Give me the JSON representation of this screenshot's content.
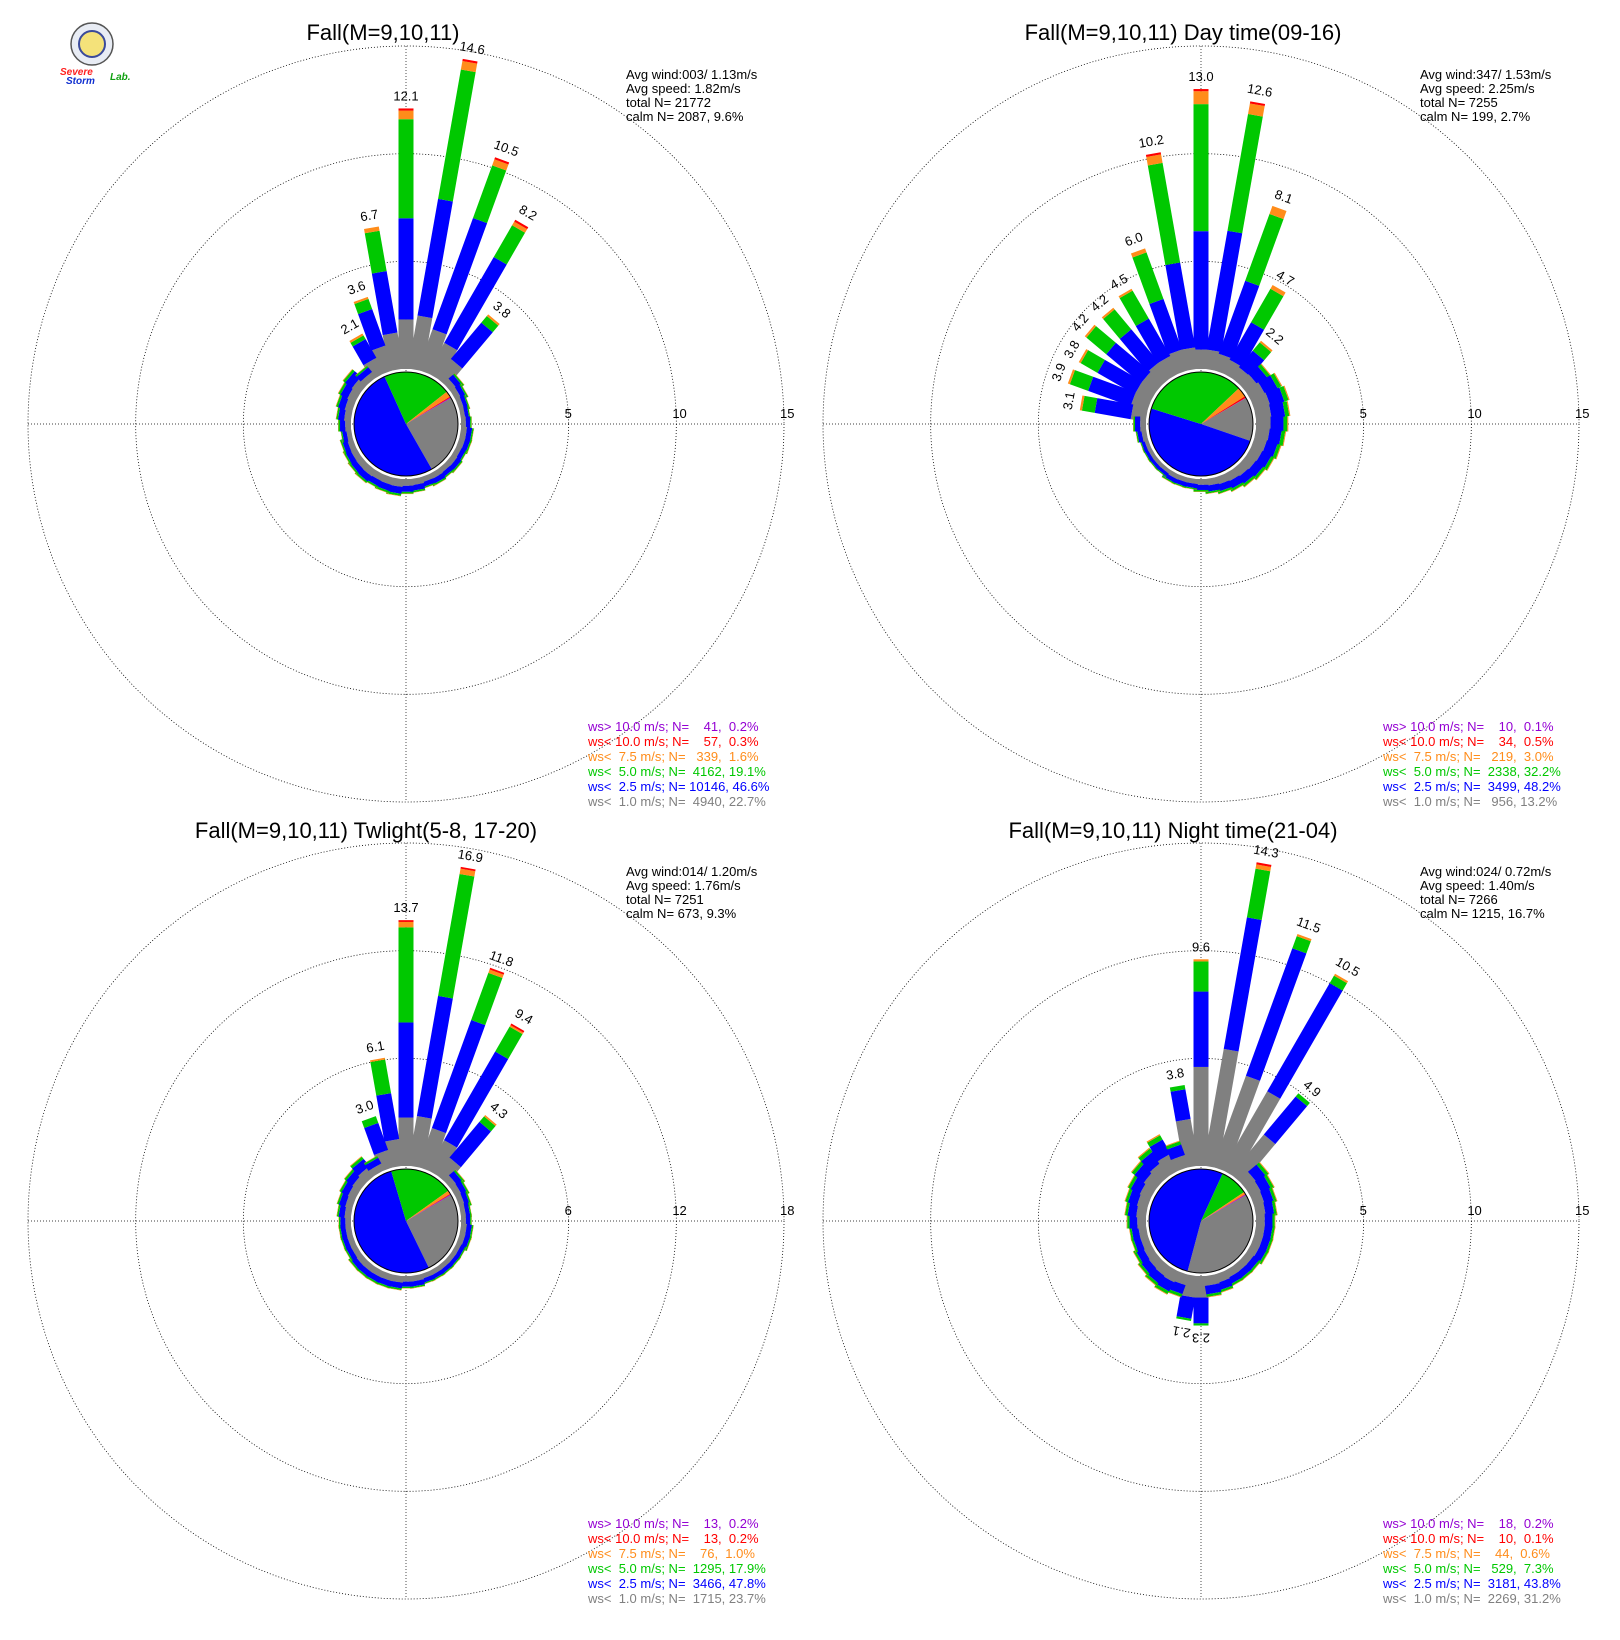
{
  "logo": {
    "line1": "Severe",
    "line2": "Storm",
    "line3": "Lab."
  },
  "colors": {
    "calm": "#808080",
    "lt1": "#808080",
    "lt2_5": "#0000ff",
    "lt5": "#00c800",
    "lt7_5": "#ff8c1a",
    "lt10": "#ff0000",
    "gt10": "#9400d3"
  },
  "chart_data": [
    {
      "type": "windrose",
      "title": "Fall(M=9,10,11)",
      "stats": [
        "Avg wind:003/ 1.13m/s",
        "Avg speed: 1.82m/s",
        "total N=      21772",
        "calm N=   2087,   9.6%"
      ],
      "ring_labels": [
        "5",
        "10",
        "15"
      ],
      "rmax": 15,
      "calm_pct": 9.6,
      "calm_pie": [
        {
          "class": "lt1",
          "pct": 22.7
        },
        {
          "class": "lt2_5",
          "pct": 46.6
        },
        {
          "class": "lt5",
          "pct": 19.1
        },
        {
          "class": "lt7_5",
          "pct": 1.6
        },
        {
          "class": "lt10",
          "pct": 0.3
        },
        {
          "class": "gt10",
          "pct": 0.2
        }
      ],
      "directions": [
        {
          "deg": 10,
          "total": 14.6,
          "split": [
            2.5,
            5.5,
            6.1,
            0.4,
            0.1,
            0.0
          ],
          "label": "14.6"
        },
        {
          "deg": 20,
          "total": 10.5,
          "split": [
            2.0,
            5.5,
            2.6,
            0.3,
            0.1,
            0.0
          ],
          "label": "10.5"
        },
        {
          "deg": 30,
          "total": 8.2,
          "split": [
            1.6,
            4.6,
            1.7,
            0.2,
            0.1,
            0.0
          ],
          "label": "8.2"
        },
        {
          "deg": 40,
          "total": 3.8,
          "split": [
            1.1,
            2.2,
            0.4,
            0.1,
            0.0,
            0.0
          ],
          "label": "3.8"
        },
        {
          "deg": 0,
          "total": 12.1,
          "split": [
            2.3,
            4.7,
            4.6,
            0.4,
            0.1,
            0.0
          ],
          "label": "12.1"
        },
        {
          "deg": 350,
          "total": 6.7,
          "split": [
            1.7,
            2.9,
            1.9,
            0.2,
            0.0,
            0.0
          ],
          "label": "6.7"
        },
        {
          "deg": 340,
          "total": 3.6,
          "split": [
            1.2,
            1.8,
            0.5,
            0.1,
            0.0,
            0.0
          ],
          "label": "3.6"
        },
        {
          "deg": 330,
          "total": 2.1,
          "split": [
            0.8,
            1.0,
            0.2,
            0.1,
            0.0,
            0.0
          ],
          "label": "2.1"
        }
      ],
      "small": [
        0.7,
        0.6,
        0.5,
        0.45,
        0.5,
        0.6,
        0.6,
        0.55,
        0.6,
        0.55,
        0.6,
        0.55,
        0.65,
        0.7,
        0.8,
        0.75,
        0.7,
        0.75,
        0.7,
        0.65,
        0.6,
        0.5,
        0.6,
        0.7,
        0.8,
        0.9,
        1.0
      ],
      "legend": [
        {
          "class": "gt10",
          "text": "ws> 10.0 m/s; N=    41,  0.2%"
        },
        {
          "class": "lt10",
          "text": "ws< 10.0 m/s; N=    57,  0.3%"
        },
        {
          "class": "lt7_5",
          "text": "ws<  7.5 m/s; N=   339,  1.6%"
        },
        {
          "class": "lt5",
          "text": "ws<  5.0 m/s; N=  4162, 19.1%"
        },
        {
          "class": "lt2_5",
          "text": "ws<  2.5 m/s; N= 10146, 46.6%"
        },
        {
          "class": "lt1",
          "text": "ws<  1.0 m/s; N=  4940, 22.7%"
        }
      ]
    },
    {
      "type": "windrose",
      "title": "Fall(M=9,10,11) Day time(09-16)",
      "stats": [
        "Avg wind:347/ 1.53m/s",
        "Avg speed: 2.25m/s",
        "total N=       7255",
        "calm N=    199,   2.7%"
      ],
      "ring_labels": [
        "5",
        "10",
        "15"
      ],
      "rmax": 15,
      "calm_pct": 2.7,
      "calm_pie": [
        {
          "class": "lt1",
          "pct": 13.2
        },
        {
          "class": "lt2_5",
          "pct": 48.2
        },
        {
          "class": "lt5",
          "pct": 32.2
        },
        {
          "class": "lt7_5",
          "pct": 3.0
        },
        {
          "class": "lt10",
          "pct": 0.5
        },
        {
          "class": "gt10",
          "pct": 0.1
        }
      ],
      "directions": [
        {
          "deg": 0,
          "total": 13.0,
          "split": [
            0.9,
            5.5,
            5.9,
            0.6,
            0.1,
            0.0
          ],
          "label": "13.0"
        },
        {
          "deg": 10,
          "total": 12.6,
          "split": [
            0.9,
            5.6,
            5.5,
            0.5,
            0.1,
            0.0
          ],
          "label": "12.6"
        },
        {
          "deg": 20,
          "total": 8.1,
          "split": [
            0.8,
            3.6,
            3.3,
            0.4,
            0.0,
            0.0
          ],
          "label": "8.1"
        },
        {
          "deg": 30,
          "total": 4.7,
          "split": [
            0.7,
            2.0,
            1.8,
            0.2,
            0.0,
            0.0
          ],
          "label": "4.7"
        },
        {
          "deg": 40,
          "total": 2.2,
          "split": [
            0.6,
            1.0,
            0.5,
            0.1,
            0.0,
            0.0
          ],
          "label": "2.2"
        },
        {
          "deg": 350,
          "total": 10.2,
          "split": [
            1.0,
            4.0,
            4.7,
            0.4,
            0.1,
            0.0
          ],
          "label": "10.2"
        },
        {
          "deg": 340,
          "total": 6.0,
          "split": [
            1.0,
            2.5,
            2.3,
            0.2,
            0.0,
            0.0
          ],
          "label": "6.0"
        },
        {
          "deg": 330,
          "total": 4.5,
          "split": [
            0.9,
            2.0,
            1.5,
            0.1,
            0.0,
            0.0
          ],
          "label": "4.5"
        },
        {
          "deg": 320,
          "total": 4.2,
          "split": [
            0.9,
            2.0,
            1.2,
            0.1,
            0.0,
            0.0
          ],
          "label": "4.2"
        },
        {
          "deg": 310,
          "total": 4.2,
          "split": [
            0.8,
            2.1,
            1.2,
            0.1,
            0.0,
            0.0
          ],
          "label": "4.2"
        },
        {
          "deg": 300,
          "total": 3.8,
          "split": [
            0.8,
            2.0,
            0.9,
            0.1,
            0.0,
            0.0
          ],
          "label": "3.8"
        },
        {
          "deg": 290,
          "total": 3.9,
          "split": [
            0.8,
            2.1,
            0.9,
            0.1,
            0.0,
            0.0
          ],
          "label": "3.9"
        },
        {
          "deg": 280,
          "total": 3.1,
          "split": [
            0.7,
            1.7,
            0.6,
            0.1,
            0.0,
            0.0
          ],
          "label": "3.1"
        }
      ],
      "small": [
        1.4,
        1.6,
        1.7,
        1.6,
        1.5,
        1.4,
        1.3,
        1.2,
        1.1,
        1.0,
        0.9,
        0.8,
        0.7,
        0.6,
        0.5,
        0.5,
        0.5,
        0.4,
        0.4,
        0.4,
        0.4,
        0.5,
        0.6,
        0.7,
        0.9,
        1.1,
        1.3
      ],
      "legend": [
        {
          "class": "gt10",
          "text": "ws> 10.0 m/s; N=    10,  0.1%"
        },
        {
          "class": "lt10",
          "text": "ws< 10.0 m/s; N=    34,  0.5%"
        },
        {
          "class": "lt7_5",
          "text": "ws<  7.5 m/s; N=   219,  3.0%"
        },
        {
          "class": "lt5",
          "text": "ws<  5.0 m/s; N=  2338, 32.2%"
        },
        {
          "class": "lt2_5",
          "text": "ws<  2.5 m/s; N=  3499, 48.2%"
        },
        {
          "class": "lt1",
          "text": "ws<  1.0 m/s; N=   956, 13.2%"
        }
      ]
    },
    {
      "type": "windrose",
      "title": "Fall(M=9,10,11) Twlight(5-8, 17-20)",
      "stats": [
        "Avg wind:014/ 1.20m/s",
        "Avg speed: 1.76m/s",
        "total N=       7251",
        "calm N=    673,   9.3%"
      ],
      "ring_labels": [
        "6",
        "12",
        "18"
      ],
      "rmax": 18,
      "calm_pct": 9.3,
      "calm_pie": [
        {
          "class": "lt1",
          "pct": 23.7
        },
        {
          "class": "lt2_5",
          "pct": 47.8
        },
        {
          "class": "lt5",
          "pct": 17.9
        },
        {
          "class": "lt7_5",
          "pct": 1.0
        },
        {
          "class": "lt10",
          "pct": 0.2
        },
        {
          "class": "gt10",
          "pct": 0.2
        }
      ],
      "directions": [
        {
          "deg": 10,
          "total": 16.9,
          "split": [
            2.8,
            6.8,
            6.9,
            0.3,
            0.1,
            0.0
          ],
          "label": "16.9"
        },
        {
          "deg": 0,
          "total": 13.7,
          "split": [
            2.7,
            5.3,
            5.3,
            0.3,
            0.1,
            0.0
          ],
          "label": "13.7"
        },
        {
          "deg": 20,
          "total": 11.8,
          "split": [
            2.3,
            6.4,
            2.8,
            0.2,
            0.1,
            0.0
          ],
          "label": "11.8"
        },
        {
          "deg": 30,
          "total": 9.4,
          "split": [
            1.9,
            5.7,
            1.6,
            0.1,
            0.1,
            0.0
          ],
          "label": "9.4"
        },
        {
          "deg": 40,
          "total": 4.3,
          "split": [
            1.2,
            2.6,
            0.4,
            0.1,
            0.0,
            0.0
          ],
          "label": "4.3"
        },
        {
          "deg": 350,
          "total": 6.1,
          "split": [
            1.5,
            2.6,
            1.9,
            0.1,
            0.0,
            0.0
          ],
          "label": "6.1"
        },
        {
          "deg": 340,
          "total": 3.0,
          "split": [
            1.0,
            1.6,
            0.4,
            0.0,
            0.0,
            0.0
          ],
          "label": "3.0"
        }
      ],
      "small": [
        0.9,
        0.8,
        0.7,
        0.6,
        0.6,
        0.7,
        0.7,
        0.6,
        0.6,
        0.6,
        0.6,
        0.6,
        0.7,
        0.7,
        0.8,
        0.8,
        0.8,
        0.8,
        0.8,
        0.7,
        0.7,
        0.7,
        0.7,
        0.8,
        0.9,
        1.0,
        1.1,
        1.3
      ],
      "legend": [
        {
          "class": "gt10",
          "text": "ws> 10.0 m/s; N=    13,  0.2%"
        },
        {
          "class": "lt10",
          "text": "ws< 10.0 m/s; N=    13,  0.2%"
        },
        {
          "class": "lt7_5",
          "text": "ws<  7.5 m/s; N=    76,  1.0%"
        },
        {
          "class": "lt5",
          "text": "ws<  5.0 m/s; N=  1295, 17.9%"
        },
        {
          "class": "lt2_5",
          "text": "ws<  2.5 m/s; N=  3466, 47.8%"
        },
        {
          "class": "lt1",
          "text": "ws<  1.0 m/s; N=  1715, 23.7%"
        }
      ]
    },
    {
      "type": "windrose",
      "title": "Fall(M=9,10,11) Night time(21-04)",
      "stats": [
        "Avg wind:024/ 0.72m/s",
        "Avg speed: 1.40m/s",
        "total N=       7266",
        "calm N=   1215,  16.7%"
      ],
      "ring_labels": [
        "5",
        "10",
        "15"
      ],
      "rmax": 15,
      "calm_pct": 16.7,
      "calm_pie": [
        {
          "class": "lt1",
          "pct": 31.2
        },
        {
          "class": "lt2_5",
          "pct": 43.8
        },
        {
          "class": "lt5",
          "pct": 7.3
        },
        {
          "class": "lt7_5",
          "pct": 0.6
        },
        {
          "class": "lt10",
          "pct": 0.1
        },
        {
          "class": "gt10",
          "pct": 0.2
        }
      ],
      "directions": [
        {
          "deg": 10,
          "total": 14.3,
          "split": [
            5.5,
            6.2,
            2.3,
            0.2,
            0.1,
            0.0
          ],
          "label": "14.3"
        },
        {
          "deg": 20,
          "total": 11.5,
          "split": [
            4.5,
            6.3,
            0.6,
            0.1,
            0.0,
            0.0
          ],
          "label": "11.5"
        },
        {
          "deg": 30,
          "total": 10.5,
          "split": [
            4.2,
            5.8,
            0.4,
            0.1,
            0.0,
            0.0
          ],
          "label": "10.5"
        },
        {
          "deg": 0,
          "total": 9.6,
          "split": [
            4.6,
            3.5,
            1.4,
            0.1,
            0.0,
            0.0
          ],
          "label": "9.6"
        },
        {
          "deg": 40,
          "total": 4.9,
          "split": [
            2.4,
            2.3,
            0.2,
            0.0,
            0.0,
            0.0
          ],
          "label": "4.9"
        },
        {
          "deg": 350,
          "total": 3.8,
          "split": [
            2.2,
            1.4,
            0.2,
            0.0,
            0.0,
            0.0
          ],
          "label": "3.8"
        },
        {
          "deg": 180,
          "total": 2.3,
          "split": [
            1.0,
            1.2,
            0.1,
            0.0,
            0.0,
            0.0
          ],
          "label": "2.3"
        },
        {
          "deg": 190,
          "total": 2.1,
          "split": [
            1.0,
            1.0,
            0.1,
            0.0,
            0.0,
            0.0
          ],
          "label": "2.1"
        }
      ],
      "small": [
        1.3,
        1.2,
        1.1,
        1.0,
        0.9,
        0.9,
        0.9,
        0.9,
        0.8,
        0.8,
        0.8,
        0.9,
        1.0,
        1.1,
        1.2,
        1.1,
        1.0,
        0.9,
        0.8,
        0.8,
        0.9,
        1.0,
        1.1,
        1.2,
        1.4,
        1.6,
        1.9
      ],
      "legend": [
        {
          "class": "gt10",
          "text": "ws> 10.0 m/s; N=    18,  0.2%"
        },
        {
          "class": "lt10",
          "text": "ws< 10.0 m/s; N=    10,  0.1%"
        },
        {
          "class": "lt7_5",
          "text": "ws<  7.5 m/s; N=    44,  0.6%"
        },
        {
          "class": "lt5",
          "text": "ws<  5.0 m/s; N=   529,  7.3%"
        },
        {
          "class": "lt2_5",
          "text": "ws<  2.5 m/s; N=  3181, 43.8%"
        },
        {
          "class": "lt1",
          "text": "ws<  1.0 m/s; N=  2269, 31.2%"
        }
      ]
    }
  ]
}
